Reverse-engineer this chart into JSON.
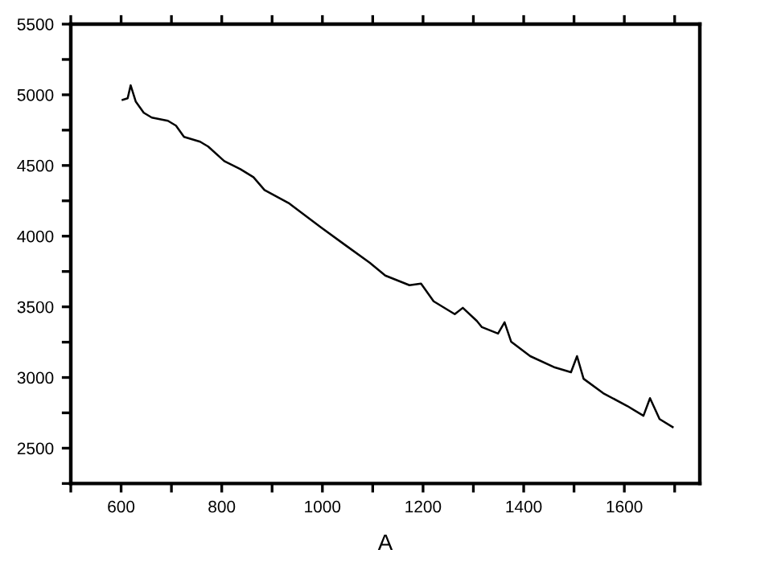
{
  "chart_data": {
    "type": "line",
    "xlabel": "A",
    "x": [
      603,
      613,
      619,
      629,
      645,
      661,
      693,
      709,
      725,
      757,
      773,
      805,
      837,
      863,
      885,
      933,
      997,
      1045,
      1094,
      1125,
      1173,
      1196,
      1221,
      1263,
      1279,
      1307,
      1317,
      1349,
      1362,
      1375,
      1413,
      1462,
      1494,
      1506,
      1519,
      1558,
      1606,
      1638,
      1651,
      1670,
      1696
    ],
    "series": [
      {
        "color": "#000000",
        "values": [
          4964,
          4975,
          5067,
          4953,
          4873,
          4839,
          4816,
          4782,
          4702,
          4668,
          4634,
          4531,
          4474,
          4417,
          4326,
          4234,
          4063,
          3938,
          3812,
          3721,
          3653,
          3664,
          3539,
          3448,
          3493,
          3400,
          3356,
          3311,
          3391,
          3254,
          3151,
          3071,
          3037,
          3151,
          2991,
          2889,
          2798,
          2729,
          2854,
          2706,
          2649
        ]
      }
    ],
    "xlim": [
      500,
      1750
    ],
    "ylim": [
      2250,
      5500
    ],
    "xticks": [
      {
        "value": 500,
        "label": null
      },
      600,
      {
        "value": 700,
        "label": null
      },
      800,
      {
        "value": 900,
        "label": null
      },
      1000,
      {
        "value": 1100,
        "label": null
      },
      1200,
      {
        "value": 1300,
        "label": null
      },
      1400,
      {
        "value": 1500,
        "label": null
      },
      1600,
      {
        "value": 1700,
        "label": null
      }
    ],
    "yticks": [
      {
        "value": 2250,
        "label": null
      },
      2500,
      {
        "value": 2750,
        "label": null
      },
      3000,
      {
        "value": 3250,
        "label": null
      },
      3500,
      {
        "value": 3750,
        "label": null
      },
      4000,
      {
        "value": 4250,
        "label": null
      },
      4500,
      {
        "value": 4750,
        "label": null
      },
      5000,
      {
        "value": 5250,
        "label": null
      },
      5500
    ],
    "grid": false,
    "legend": false,
    "marker": "none",
    "line_style": "solid"
  }
}
